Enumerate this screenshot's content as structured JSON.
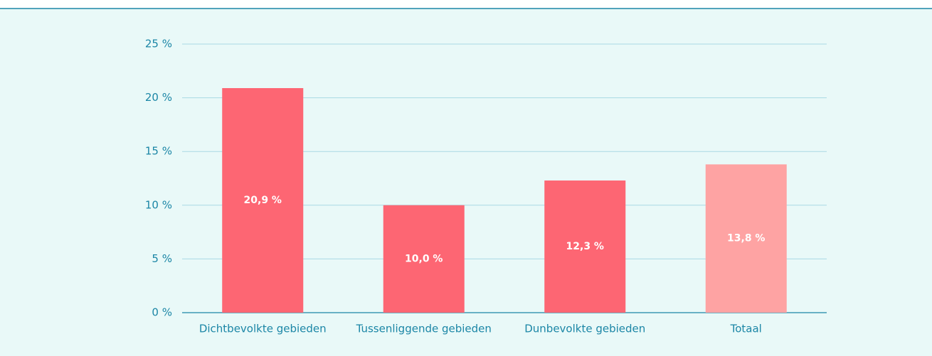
{
  "chart_data": {
    "type": "bar",
    "categories": [
      "Dichtbevolkte gebieden",
      "Tussenliggende gebieden",
      "Dunbevolkte gebieden",
      "Totaal"
    ],
    "values": [
      20.9,
      10.0,
      12.3,
      13.8
    ],
    "value_labels": [
      "20,9 %",
      "10,0 %",
      "12,3 %",
      "13,8 %"
    ],
    "colors": [
      "#fd6673",
      "#fd6673",
      "#fd6673",
      "#fea3a3"
    ],
    "ylim": [
      0,
      25
    ],
    "yticks": [
      {
        "value": 0,
        "label": "0 %"
      },
      {
        "value": 5,
        "label": "5 %"
      },
      {
        "value": 10,
        "label": "10 %"
      },
      {
        "value": 15,
        "label": "15 %"
      },
      {
        "value": 20,
        "label": "20 %"
      },
      {
        "value": 25,
        "label": "25 %"
      }
    ],
    "grid": true
  }
}
